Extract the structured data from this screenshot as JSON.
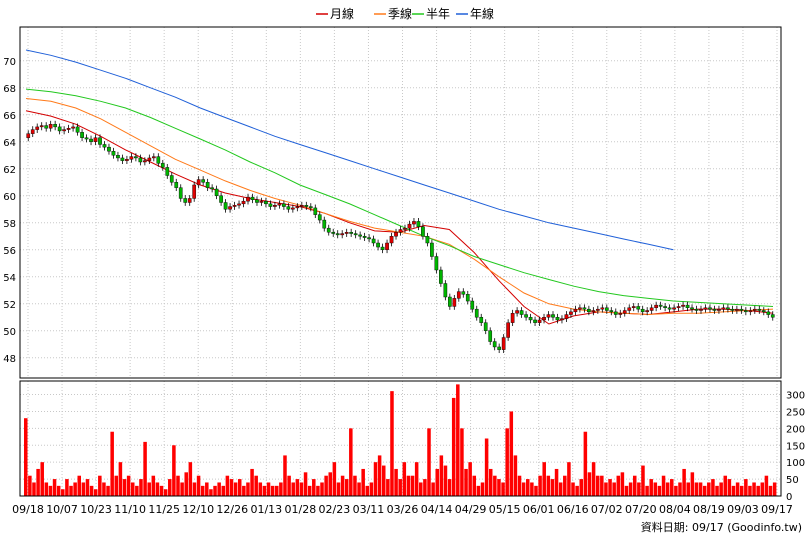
{
  "legend": [
    {
      "label": "月線",
      "color": "#d40000"
    },
    {
      "label": "季線",
      "color": "#ff7a1a"
    },
    {
      "label": "半年",
      "color": "#22c81e"
    },
    {
      "label": "年線",
      "color": "#2060d8"
    }
  ],
  "footer": "資料日期: 09/17  (Goodinfo.tw)",
  "chart_data": [
    {
      "type": "line",
      "title": "",
      "x_tick_labels": [
        "09/18",
        "10/07",
        "10/23",
        "11/10",
        "11/25",
        "12/10",
        "12/26",
        "01/13",
        "01/28",
        "02/23",
        "03/11",
        "03/26",
        "04/14",
        "04/29",
        "05/15",
        "06/01",
        "06/16",
        "07/02",
        "07/20",
        "08/04",
        "08/19",
        "09/03",
        "09/17"
      ],
      "ylim": [
        46.5,
        72.5
      ],
      "y_ticks": [
        48,
        50,
        52,
        54,
        56,
        58,
        60,
        62,
        64,
        66,
        68,
        70
      ],
      "grid": true,
      "legend_position": "top-center",
      "candles_close": [
        64.6,
        64.9,
        65.1,
        65.2,
        65.0,
        65.3,
        65.1,
        64.8,
        64.9,
        65.0,
        65.1,
        64.7,
        64.3,
        64.2,
        64.0,
        64.3,
        63.8,
        63.6,
        63.3,
        63.0,
        62.8,
        62.6,
        62.7,
        62.9,
        62.8,
        62.5,
        62.6,
        62.8,
        62.9,
        62.4,
        62.1,
        61.5,
        61.0,
        60.6,
        59.8,
        59.5,
        59.8,
        60.8,
        61.2,
        61.0,
        60.6,
        60.5,
        60.0,
        59.5,
        59.0,
        59.2,
        59.3,
        59.4,
        59.6,
        59.9,
        59.7,
        59.5,
        59.6,
        59.4,
        59.2,
        59.3,
        59.4,
        59.2,
        59.0,
        59.1,
        59.2,
        59.3,
        59.2,
        59.1,
        58.6,
        58.2,
        57.6,
        57.3,
        57.2,
        57.1,
        57.2,
        57.3,
        57.2,
        57.1,
        57.0,
        56.9,
        56.8,
        56.5,
        56.2,
        56.0,
        56.5,
        57.0,
        57.3,
        57.5,
        57.6,
        57.9,
        58.1,
        57.7,
        57.0,
        56.5,
        55.5,
        54.5,
        53.5,
        52.5,
        51.8,
        52.4,
        52.9,
        52.7,
        52.2,
        51.6,
        51.0,
        50.6,
        50.0,
        49.2,
        48.8,
        48.6,
        49.5,
        50.6,
        51.3,
        51.5,
        51.2,
        51.0,
        50.8,
        50.6,
        50.8,
        51.0,
        51.2,
        51.0,
        50.8,
        50.9,
        51.2,
        51.4,
        51.6,
        51.7,
        51.6,
        51.4,
        51.5,
        51.6,
        51.7,
        51.5,
        51.4,
        51.2,
        51.3,
        51.5,
        51.7,
        51.8,
        51.6,
        51.4,
        51.5,
        51.7,
        51.9,
        51.8,
        51.7,
        51.6,
        51.7,
        51.8,
        51.9,
        51.7,
        51.6,
        51.5,
        51.6,
        51.7,
        51.6,
        51.5,
        51.6,
        51.7,
        51.6,
        51.5,
        51.6,
        51.5,
        51.4,
        51.5,
        51.6,
        51.5,
        51.4,
        51.2,
        51.0
      ],
      "series": [
        {
          "name": "月線",
          "values": [
            66.3,
            65.9,
            65.3,
            64.4,
            63.4,
            62.5,
            61.6,
            60.8,
            60.2,
            59.8,
            59.5,
            59.2,
            58.7,
            58.0,
            57.4,
            57.3,
            57.8,
            57.5,
            55.8,
            53.7,
            51.8,
            50.5,
            51.1,
            51.4,
            51.3,
            51.2,
            51.4,
            51.6,
            51.6,
            51.5,
            51.3
          ]
        },
        {
          "name": "季線",
          "values": [
            67.2,
            67.0,
            66.5,
            65.7,
            64.7,
            63.7,
            62.7,
            61.9,
            61.1,
            60.4,
            59.8,
            59.3,
            58.7,
            58.1,
            57.6,
            57.3,
            57.0,
            56.4,
            55.3,
            54.0,
            52.8,
            52.0,
            51.6,
            51.4,
            51.3,
            51.2,
            51.3,
            51.3,
            51.4,
            51.5,
            51.6
          ]
        },
        {
          "name": "半年",
          "values": [
            67.9,
            67.7,
            67.4,
            67.0,
            66.5,
            65.8,
            65.0,
            64.2,
            63.4,
            62.5,
            61.7,
            60.8,
            60.1,
            59.4,
            58.6,
            57.8,
            57.0,
            56.3,
            55.5,
            54.9,
            54.3,
            53.8,
            53.3,
            52.9,
            52.6,
            52.4,
            52.2,
            52.1,
            52.0,
            51.9,
            51.8
          ]
        },
        {
          "name": "年線",
          "values": [
            70.8,
            70.4,
            69.9,
            69.3,
            68.7,
            68.0,
            67.3,
            66.5,
            65.8,
            65.1,
            64.4,
            63.8,
            63.2,
            62.6,
            62.0,
            61.4,
            60.8,
            60.2,
            59.6,
            59.0,
            58.5,
            58.0,
            57.6,
            57.2,
            56.8,
            56.4,
            56.0,
            null,
            null,
            null,
            null
          ]
        }
      ]
    },
    {
      "type": "bar",
      "title": "",
      "ylim": [
        0,
        340
      ],
      "y_ticks": [
        0,
        50,
        100,
        150,
        200,
        250,
        300
      ],
      "grid": true,
      "values": [
        230,
        60,
        40,
        80,
        100,
        40,
        30,
        50,
        30,
        20,
        50,
        30,
        40,
        60,
        40,
        50,
        30,
        20,
        60,
        40,
        30,
        190,
        60,
        100,
        50,
        60,
        40,
        30,
        50,
        160,
        40,
        60,
        40,
        30,
        20,
        50,
        150,
        60,
        40,
        70,
        100,
        40,
        60,
        30,
        40,
        20,
        30,
        40,
        30,
        60,
        50,
        40,
        50,
        30,
        40,
        80,
        60,
        40,
        30,
        40,
        30,
        30,
        40,
        120,
        60,
        40,
        50,
        40,
        70,
        30,
        50,
        30,
        40,
        60,
        70,
        100,
        40,
        60,
        50,
        200,
        60,
        40,
        80,
        30,
        40,
        100,
        120,
        90,
        50,
        310,
        80,
        50,
        100,
        60,
        60,
        100,
        40,
        50,
        200,
        40,
        80,
        120,
        90,
        50,
        290,
        330,
        200,
        80,
        100,
        60,
        30,
        40,
        170,
        80,
        60,
        50,
        40,
        200,
        250,
        120,
        60,
        40,
        50,
        40,
        30,
        60,
        100,
        60,
        50,
        80,
        40,
        60,
        100,
        40,
        30,
        50,
        190,
        70,
        100,
        60,
        60,
        40,
        50,
        40,
        60,
        70,
        30,
        40,
        60,
        40,
        90,
        30,
        50,
        40,
        30,
        60,
        40,
        50,
        30,
        40,
        80,
        40,
        70,
        40,
        40,
        30,
        40,
        50,
        30,
        40,
        60,
        50,
        30,
        40,
        30,
        50,
        30,
        40,
        30,
        40,
        60,
        30,
        40
      ]
    }
  ]
}
